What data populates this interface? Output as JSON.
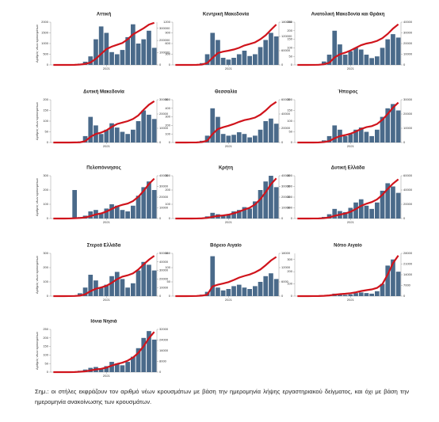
{
  "chart_data": [
    {
      "type": "bar-line",
      "title": "Αττική",
      "ylabel": "Αριθμός νέων κρουσμάτων",
      "bar_color": "#4a6a8a",
      "line_color": "#d0141c",
      "categories": [
        null,
        null,
        null,
        null,
        null,
        null,
        null,
        null,
        null,
        null,
        "2021",
        null,
        null,
        null,
        null,
        null,
        null,
        null,
        null,
        null
      ],
      "values": [
        0,
        0,
        0,
        5,
        20,
        60,
        150,
        400,
        1200,
        1800,
        1500,
        600,
        500,
        700,
        1300,
        1900,
        1000,
        1200,
        1600,
        800
      ],
      "cumulative": [
        0,
        0,
        0,
        200,
        800,
        3000,
        8000,
        20000,
        50000,
        90000,
        130000,
        150000,
        165000,
        180000,
        210000,
        250000,
        275000,
        300000,
        330000,
        345000
      ],
      "ylim": [
        0,
        2000
      ],
      "yticks": [
        0,
        500,
        1000,
        1500,
        2000
      ],
      "y2lim": [
        0,
        350000
      ],
      "y2ticks": [
        0,
        100000,
        200000,
        300000
      ]
    },
    {
      "type": "bar-line",
      "title": "Κεντρική Μακεδονία",
      "bar_color": "#4a6a8a",
      "line_color": "#d0141c",
      "categories": [
        null,
        null,
        null,
        null,
        null,
        null,
        null,
        null,
        null,
        null,
        "2021",
        null,
        null,
        null,
        null,
        null,
        null,
        null,
        null,
        null
      ],
      "values": [
        0,
        0,
        0,
        5,
        10,
        50,
        300,
        900,
        700,
        200,
        150,
        200,
        300,
        400,
        250,
        300,
        500,
        700,
        900,
        800
      ],
      "cumulative": [
        0,
        0,
        0,
        100,
        300,
        1500,
        8000,
        30000,
        50000,
        56000,
        60000,
        65000,
        72000,
        82000,
        88000,
        95000,
        108000,
        125000,
        148000,
        170000
      ],
      "ylim": [
        0,
        1200
      ],
      "yticks": [
        0,
        300,
        600,
        900,
        1200
      ],
      "y2lim": [
        0,
        180000
      ],
      "y2ticks": [
        0,
        60000,
        120000,
        180000
      ]
    },
    {
      "type": "bar-line",
      "title": "Ανατολική Μακεδονία και Θράκη",
      "bar_color": "#4a6a8a",
      "line_color": "#d0141c",
      "categories": [
        null,
        null,
        null,
        null,
        null,
        null,
        null,
        null,
        null,
        null,
        "2021",
        null,
        null,
        null,
        null,
        null,
        null,
        null,
        null,
        null
      ],
      "values": [
        0,
        0,
        0,
        2,
        5,
        20,
        60,
        200,
        120,
        60,
        80,
        100,
        90,
        60,
        40,
        50,
        100,
        150,
        180,
        160
      ],
      "cumulative": [
        0,
        0,
        0,
        50,
        150,
        600,
        2000,
        7000,
        10000,
        11500,
        13500,
        16000,
        18500,
        20000,
        21000,
        22500,
        25000,
        29000,
        34000,
        38000
      ],
      "ylim": [
        0,
        250
      ],
      "yticks": [
        0,
        50,
        100,
        150,
        200,
        250
      ],
      "y2lim": [
        0,
        40000
      ],
      "y2ticks": [
        0,
        10000,
        20000,
        30000,
        40000
      ]
    },
    {
      "type": "bar-line",
      "title": "Δυτική Μακεδονία",
      "ylabel": "Αριθμός νέων κρουσμάτων",
      "bar_color": "#4a6a8a",
      "line_color": "#d0141c",
      "categories": [
        null,
        null,
        null,
        null,
        null,
        null,
        null,
        null,
        null,
        null,
        "2021",
        null,
        null,
        null,
        null,
        null,
        null,
        null,
        null,
        null
      ],
      "values": [
        0,
        0,
        0,
        0,
        2,
        5,
        30,
        120,
        80,
        40,
        60,
        90,
        70,
        50,
        40,
        60,
        100,
        150,
        130,
        110
      ],
      "cumulative": [
        0,
        0,
        0,
        0,
        50,
        150,
        900,
        4000,
        6000,
        7000,
        8500,
        11000,
        13000,
        14000,
        15000,
        16500,
        19000,
        23000,
        26500,
        29000
      ],
      "ylim": [
        0,
        200
      ],
      "yticks": [
        0,
        50,
        100,
        150,
        200
      ],
      "y2lim": [
        0,
        30000
      ],
      "y2ticks": [
        0,
        10000,
        20000,
        30000
      ]
    },
    {
      "type": "bar-line",
      "title": "Θεσσαλία",
      "bar_color": "#4a6a8a",
      "line_color": "#d0141c",
      "categories": [
        null,
        null,
        null,
        null,
        null,
        null,
        null,
        null,
        null,
        null,
        "2021",
        null,
        null,
        null,
        null,
        null,
        null,
        null,
        null,
        null
      ],
      "values": [
        0,
        0,
        0,
        2,
        5,
        20,
        80,
        400,
        300,
        100,
        80,
        90,
        120,
        100,
        60,
        80,
        150,
        250,
        280,
        220
      ],
      "cumulative": [
        0,
        0,
        0,
        50,
        150,
        600,
        2500,
        12000,
        19000,
        21500,
        23500,
        26000,
        29000,
        31500,
        33000,
        35000,
        39000,
        45000,
        52000,
        57000
      ],
      "ylim": [
        0,
        500
      ],
      "yticks": [
        0,
        100,
        200,
        300,
        400,
        500
      ],
      "y2lim": [
        0,
        60000
      ],
      "y2ticks": [
        0,
        20000,
        40000,
        60000
      ]
    },
    {
      "type": "bar-line",
      "title": "Ήπειρος",
      "bar_color": "#4a6a8a",
      "line_color": "#d0141c",
      "categories": [
        null,
        null,
        null,
        null,
        null,
        null,
        null,
        null,
        null,
        null,
        "2021",
        null,
        null,
        null,
        null,
        null,
        null,
        null,
        null,
        null
      ],
      "values": [
        0,
        0,
        0,
        1,
        3,
        10,
        30,
        80,
        60,
        30,
        40,
        60,
        70,
        50,
        30,
        60,
        120,
        160,
        180,
        150
      ],
      "cumulative": [
        0,
        0,
        0,
        20,
        80,
        300,
        1000,
        3000,
        4500,
        5200,
        6200,
        7700,
        9500,
        10800,
        11500,
        13000,
        16000,
        20000,
        24500,
        28000
      ],
      "ylim": [
        0,
        200
      ],
      "yticks": [
        0,
        50,
        100,
        150,
        200
      ],
      "y2lim": [
        0,
        30000
      ],
      "y2ticks": [
        0,
        10000,
        20000,
        30000
      ]
    },
    {
      "type": "bar-line",
      "title": "Πελοπόννησος",
      "ylabel": "Αριθμός νέων κρουσμάτων",
      "bar_color": "#4a6a8a",
      "line_color": "#d0141c",
      "categories": [
        null,
        null,
        null,
        null,
        null,
        null,
        null,
        null,
        null,
        null,
        "2021",
        null,
        null,
        null,
        null,
        null,
        null,
        null,
        null,
        null
      ],
      "values": [
        0,
        0,
        0,
        2,
        200,
        10,
        20,
        50,
        60,
        40,
        70,
        100,
        90,
        60,
        50,
        90,
        160,
        220,
        260,
        200
      ],
      "cumulative": [
        0,
        0,
        0,
        50,
        300,
        500,
        1000,
        2300,
        3800,
        4800,
        6500,
        9000,
        11300,
        12800,
        14000,
        16300,
        20300,
        25800,
        32300,
        37300
      ],
      "ylim": [
        0,
        300
      ],
      "yticks": [
        0,
        100,
        200,
        300
      ],
      "y2lim": [
        0,
        40000
      ],
      "y2ticks": [
        0,
        10000,
        20000,
        30000,
        40000
      ]
    },
    {
      "type": "bar-line",
      "title": "Κρήτη",
      "bar_color": "#4a6a8a",
      "line_color": "#d0141c",
      "categories": [
        null,
        null,
        null,
        null,
        null,
        null,
        null,
        null,
        null,
        null,
        "2021",
        null,
        null,
        null,
        null,
        null,
        null,
        null,
        null,
        null
      ],
      "values": [
        0,
        0,
        0,
        1,
        2,
        5,
        15,
        40,
        30,
        20,
        30,
        50,
        60,
        80,
        70,
        120,
        200,
        260,
        300,
        220
      ],
      "cumulative": [
        0,
        0,
        0,
        20,
        60,
        200,
        600,
        1600,
        2400,
        2900,
        3600,
        4900,
        6400,
        8400,
        10100,
        13100,
        18100,
        24600,
        32100,
        37600
      ],
      "ylim": [
        0,
        300
      ],
      "yticks": [
        0,
        100,
        200,
        300
      ],
      "y2lim": [
        0,
        40000
      ],
      "y2ticks": [
        0,
        10000,
        20000,
        30000,
        40000
      ]
    },
    {
      "type": "bar-line",
      "title": "Δυτική Ελλάδα",
      "bar_color": "#4a6a8a",
      "line_color": "#d0141c",
      "categories": [
        null,
        null,
        null,
        null,
        null,
        null,
        null,
        null,
        null,
        null,
        "2021",
        null,
        null,
        null,
        null,
        null,
        null,
        null,
        null,
        null
      ],
      "values": [
        0,
        0,
        0,
        2,
        5,
        15,
        40,
        90,
        70,
        60,
        100,
        150,
        180,
        120,
        90,
        150,
        260,
        330,
        300,
        240
      ],
      "cumulative": [
        0,
        0,
        0,
        50,
        150,
        500,
        1500,
        3800,
        5500,
        7000,
        9500,
        13300,
        17800,
        20800,
        23100,
        26800,
        33300,
        41500,
        49000,
        55000
      ],
      "ylim": [
        0,
        400
      ],
      "yticks": [
        0,
        100,
        200,
        300,
        400
      ],
      "y2lim": [
        0,
        60000
      ],
      "y2ticks": [
        0,
        20000,
        40000,
        60000
      ]
    },
    {
      "type": "bar-line",
      "title": "Στερεά Ελλάδα",
      "ylabel": "Αριθμός νέων κρουσμάτων",
      "bar_color": "#4a6a8a",
      "line_color": "#d0141c",
      "categories": [
        null,
        null,
        null,
        null,
        null,
        null,
        null,
        null,
        null,
        null,
        "2021",
        null,
        null,
        null,
        null,
        null,
        null,
        null,
        null,
        null
      ],
      "values": [
        0,
        0,
        0,
        2,
        5,
        20,
        60,
        150,
        110,
        60,
        80,
        140,
        170,
        120,
        60,
        90,
        180,
        240,
        220,
        180
      ],
      "cumulative": [
        0,
        0,
        0,
        50,
        150,
        600,
        2100,
        5800,
        8600,
        10100,
        12100,
        15600,
        19800,
        22800,
        24300,
        26600,
        31100,
        37100,
        42600,
        47100
      ],
      "ylim": [
        0,
        300
      ],
      "yticks": [
        0,
        100,
        200,
        300
      ],
      "y2lim": [
        0,
        50000
      ],
      "y2ticks": [
        0,
        10000,
        20000,
        30000,
        40000,
        50000
      ]
    },
    {
      "type": "bar-line",
      "title": "Βόρειο Αιγαίο",
      "bar_color": "#4a6a8a",
      "line_color": "#d0141c",
      "categories": [
        null,
        null,
        null,
        null,
        null,
        null,
        null,
        null,
        null,
        null,
        "2021",
        null,
        null,
        null,
        null,
        null,
        null,
        null,
        null,
        null
      ],
      "values": [
        0,
        0,
        0,
        1,
        2,
        5,
        15,
        140,
        30,
        20,
        25,
        35,
        40,
        30,
        25,
        35,
        50,
        70,
        80,
        60
      ],
      "cumulative": [
        0,
        0,
        0,
        20,
        60,
        200,
        600,
        4100,
        4800,
        5300,
        5900,
        6800,
        7800,
        8500,
        9100,
        10000,
        11200,
        13000,
        15000,
        16500
      ],
      "ylim": [
        0,
        150
      ],
      "yticks": [
        0,
        50,
        100,
        150
      ],
      "y2lim": [
        0,
        18000
      ],
      "y2ticks": [
        0,
        6000,
        12000,
        18000
      ]
    },
    {
      "type": "bar-line",
      "title": "Νότιο Αιγαίο",
      "bar_color": "#4a6a8a",
      "line_color": "#d0141c",
      "categories": [
        null,
        null,
        null,
        null,
        null,
        null,
        null,
        null,
        null,
        null,
        "2021",
        null,
        null,
        null,
        null,
        null,
        null,
        null,
        null,
        null
      ],
      "values": [
        0,
        0,
        0,
        1,
        2,
        5,
        10,
        20,
        15,
        10,
        15,
        25,
        30,
        25,
        20,
        40,
        100,
        250,
        300,
        200
      ],
      "cumulative": [
        0,
        0,
        0,
        20,
        60,
        200,
        450,
        950,
        1300,
        1550,
        1900,
        2500,
        3300,
        3900,
        4400,
        5400,
        7900,
        14100,
        21600,
        26600
      ],
      "ylim": [
        0,
        350
      ],
      "yticks": [
        0,
        100,
        200,
        300
      ],
      "y2lim": [
        0,
        28000
      ],
      "y2ticks": [
        0,
        7000,
        14000,
        21000,
        28000
      ]
    },
    {
      "type": "bar-line",
      "title": "Ιόνια Νησιά",
      "ylabel": "Αριθμός νέων κρουσμάτων",
      "bar_color": "#4a6a8a",
      "line_color": "#d0141c",
      "categories": [
        null,
        null,
        null,
        null,
        null,
        null,
        null,
        null,
        null,
        null,
        "2021",
        null,
        null,
        null,
        null,
        null,
        null,
        null,
        null,
        null
      ],
      "values": [
        0,
        0,
        0,
        1,
        3,
        8,
        15,
        25,
        30,
        20,
        35,
        60,
        50,
        40,
        60,
        90,
        140,
        200,
        240,
        190
      ],
      "cumulative": [
        0,
        0,
        0,
        20,
        80,
        250,
        600,
        1200,
        2000,
        2500,
        3400,
        4900,
        6100,
        7100,
        8600,
        10900,
        14400,
        19400,
        25400,
        30100
      ],
      "ylim": [
        0,
        250
      ],
      "yticks": [
        0,
        50,
        100,
        150,
        200,
        250
      ],
      "y2lim": [
        0,
        32000
      ],
      "y2ticks": [
        0,
        8000,
        16000,
        24000,
        32000
      ]
    }
  ],
  "note": "Σημ.: οι στήλες εκφράζουν τον αριθμό νέων κρουσμάτων με βάση την ημερομηνία λήψης εργαστηριακού δείγματος, και όχι με βάση την ημερομηνία ανακοίνωσης των κρουσμάτων."
}
